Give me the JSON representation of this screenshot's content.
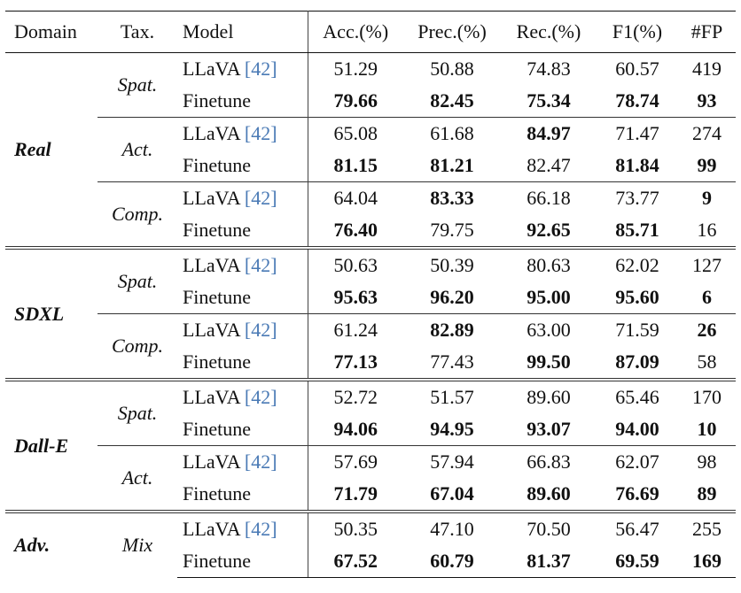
{
  "header": [
    "Domain",
    "Tax.",
    "Model",
    "Acc.(%)",
    "Prec.(%)",
    "Rec.(%)",
    "F1(%)",
    "#FP"
  ],
  "groups": [
    {
      "domain": "Real",
      "subgroups": [
        {
          "tax": "Spat.",
          "rows": [
            {
              "model": "LLaVA",
              "cite": "[42]",
              "values": [
                "51.29",
                "50.88",
                "74.83",
                "60.57",
                "419"
              ],
              "bold": []
            },
            {
              "model": "Finetune",
              "values": [
                "79.66",
                "82.45",
                "75.34",
                "78.74",
                "93"
              ],
              "bold": [
                0,
                1,
                2,
                3,
                4
              ]
            }
          ]
        },
        {
          "tax": "Act.",
          "rows": [
            {
              "model": "LLaVA",
              "cite": "[42]",
              "values": [
                "65.08",
                "61.68",
                "84.97",
                "71.47",
                "274"
              ],
              "bold": [
                2
              ]
            },
            {
              "model": "Finetune",
              "values": [
                "81.15",
                "81.21",
                "82.47",
                "81.84",
                "99"
              ],
              "bold": [
                0,
                1,
                3,
                4
              ]
            }
          ]
        },
        {
          "tax": "Comp.",
          "rows": [
            {
              "model": "LLaVA",
              "cite": "[42]",
              "values": [
                "64.04",
                "83.33",
                "66.18",
                "73.77",
                "9"
              ],
              "bold": [
                1,
                4
              ]
            },
            {
              "model": "Finetune",
              "values": [
                "76.40",
                "79.75",
                "92.65",
                "85.71",
                "16"
              ],
              "bold": [
                0,
                2,
                3
              ]
            }
          ]
        }
      ]
    },
    {
      "domain": "SDXL",
      "subgroups": [
        {
          "tax": "Spat.",
          "rows": [
            {
              "model": "LLaVA",
              "cite": "[42]",
              "values": [
                "50.63",
                "50.39",
                "80.63",
                "62.02",
                "127"
              ],
              "bold": []
            },
            {
              "model": "Finetune",
              "values": [
                "95.63",
                "96.20",
                "95.00",
                "95.60",
                "6"
              ],
              "bold": [
                0,
                1,
                2,
                3,
                4
              ]
            }
          ]
        },
        {
          "tax": "Comp.",
          "rows": [
            {
              "model": "LLaVA",
              "cite": "[42]",
              "values": [
                "61.24",
                "82.89",
                "63.00",
                "71.59",
                "26"
              ],
              "bold": [
                1,
                4
              ]
            },
            {
              "model": "Finetune",
              "values": [
                "77.13",
                "77.43",
                "99.50",
                "87.09",
                "58"
              ],
              "bold": [
                0,
                2,
                3
              ]
            }
          ]
        }
      ]
    },
    {
      "domain": "Dall-E",
      "subgroups": [
        {
          "tax": "Spat.",
          "rows": [
            {
              "model": "LLaVA",
              "cite": "[42]",
              "values": [
                "52.72",
                "51.57",
                "89.60",
                "65.46",
                "170"
              ],
              "bold": []
            },
            {
              "model": "Finetune",
              "values": [
                "94.06",
                "94.95",
                "93.07",
                "94.00",
                "10"
              ],
              "bold": [
                0,
                1,
                2,
                3,
                4
              ]
            }
          ]
        },
        {
          "tax": "Act.",
          "rows": [
            {
              "model": "LLaVA",
              "cite": "[42]",
              "values": [
                "57.69",
                "57.94",
                "66.83",
                "62.07",
                "98"
              ],
              "bold": []
            },
            {
              "model": "Finetune",
              "values": [
                "71.79",
                "67.04",
                "89.60",
                "76.69",
                "89"
              ],
              "bold": [
                0,
                1,
                2,
                3,
                4
              ]
            }
          ]
        }
      ]
    },
    {
      "domain": "Adv.",
      "subgroups": [
        {
          "tax": "Mix",
          "rows": [
            {
              "model": "LLaVA",
              "cite": "[42]",
              "values": [
                "50.35",
                "47.10",
                "70.50",
                "56.47",
                "255"
              ],
              "bold": []
            },
            {
              "model": "Finetune",
              "values": [
                "67.52",
                "60.79",
                "81.37",
                "69.59",
                "169"
              ],
              "bold": [
                0,
                1,
                2,
                3,
                4
              ]
            }
          ]
        }
      ]
    }
  ]
}
